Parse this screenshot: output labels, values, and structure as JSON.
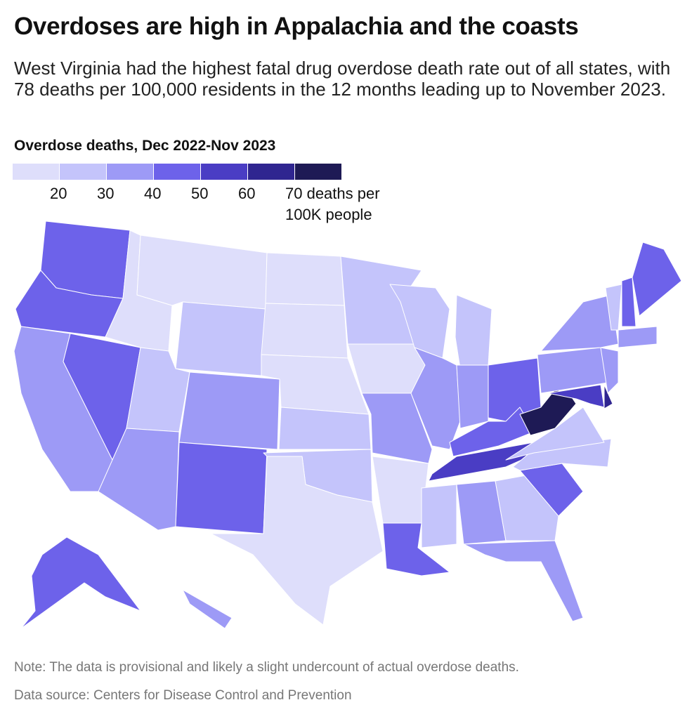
{
  "header": {
    "title": "Overdoses are high in Appalachia and the coasts",
    "subtitle": "West Virginia had the highest fatal drug overdose death rate out of all states, with 78 deaths per 100,000 residents in the 12 months leading up to November 2023."
  },
  "legend": {
    "title": "Overdose deaths, Dec 2022-Nov 2023",
    "colors": [
      "#dedefb",
      "#c4c4fb",
      "#9d9af6",
      "#6d62ea",
      "#4a3dc4",
      "#2f2590",
      "#1e1a55"
    ],
    "ticks": [
      20,
      30,
      40,
      50,
      60,
      {
        "value": 70,
        "label": "70 deaths per 100K people"
      }
    ]
  },
  "map": {
    "values": [
      45,
      47,
      35,
      48,
      18,
      17,
      25,
      25,
      37,
      38,
      48,
      16,
      17,
      17,
      23,
      24,
      18,
      25,
      17,
      37,
      18,
      47,
      25,
      30,
      27,
      37,
      47,
      44,
      56,
      25,
      38,
      25,
      38,
      47,
      25,
      24,
      78,
      37,
      56,
      60,
      30,
      35,
      38,
      25,
      40,
      47,
      45,
      30
    ]
  },
  "footer": {
    "note": "Note: The data is provisional and likely a slight undercount of actual overdose deaths.",
    "source": "Data source: Centers for Disease Control and Prevention"
  }
}
